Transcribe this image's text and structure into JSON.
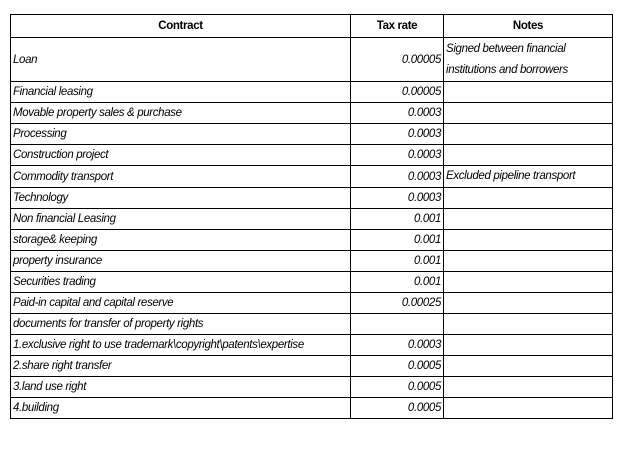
{
  "table": {
    "columns": [
      "Contract",
      "Tax rate",
      "Notes"
    ],
    "rows": [
      {
        "contract": "Loan",
        "tax_rate": "0.00005",
        "notes": "Signed between financial institutions and borrowers"
      },
      {
        "contract": "Financial leasing",
        "tax_rate": "0.00005"
      },
      {
        "contract": "Movable property sales & purchase",
        "tax_rate": "0.0003"
      },
      {
        "contract": "Processing",
        "tax_rate": "0.0003"
      },
      {
        "contract": "Construction project",
        "tax_rate": "0.0003"
      },
      {
        "contract": "Commodity transport",
        "tax_rate": "0.0003",
        "notes": "Excluded pipeline transport"
      },
      {
        "contract": "Technology",
        "tax_rate": "0.0003"
      },
      {
        "contract": "Non financial Leasing",
        "tax_rate": "0.001"
      },
      {
        "contract": "storage& keeping",
        "tax_rate": "0.001"
      },
      {
        "contract": "property insurance",
        "tax_rate": "0.001"
      },
      {
        "contract": "Securities trading",
        "tax_rate": "0.001"
      },
      {
        "contract": "Paid-in capital and capital reserve",
        "tax_rate": "0.00025"
      },
      {
        "contract": "documents for transfer of property rights"
      },
      {
        "contract": "1.exclusive right to use trademark\\copyright\\patents\\expertise",
        "tax_rate": "0.0003"
      },
      {
        "contract": "2.share right transfer",
        "tax_rate": "0.0005"
      },
      {
        "contract": "3.land use right",
        "tax_rate": "0.0005"
      },
      {
        "contract": "4.building",
        "tax_rate": "0.0005"
      }
    ]
  }
}
